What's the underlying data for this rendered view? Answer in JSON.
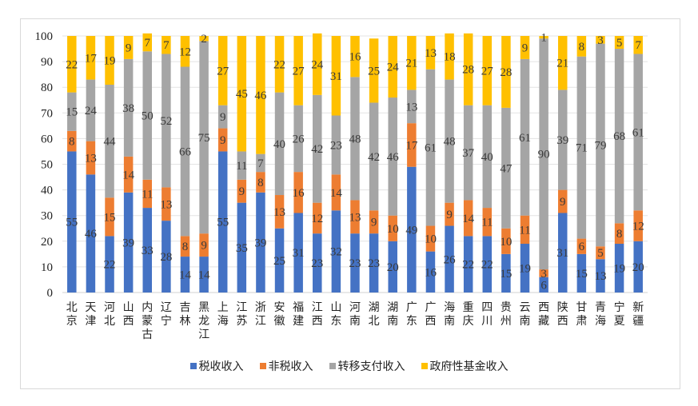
{
  "chart_data": {
    "type": "bar",
    "stacked": true,
    "title": "",
    "xlabel": "",
    "ylabel": "",
    "ylim": [
      0,
      100
    ],
    "yticks": [
      0,
      10,
      20,
      30,
      40,
      50,
      60,
      70,
      80,
      90,
      100
    ],
    "grid": true,
    "legend_position": "bottom",
    "categories": [
      "北京",
      "天津",
      "河北",
      "山西",
      "内蒙古",
      "辽宁",
      "吉林",
      "黑龙江",
      "上海",
      "江苏",
      "浙江",
      "安徽",
      "福建",
      "江西",
      "山东",
      "河南",
      "湖北",
      "湖南",
      "广东",
      "广西",
      "海南",
      "重庆",
      "四川",
      "贵州",
      "云南",
      "西藏",
      "陕西",
      "甘肃",
      "青海",
      "宁夏",
      "新疆"
    ],
    "series": [
      {
        "name": "税收收入",
        "color": "#4472c4",
        "values": [
          55,
          46,
          22,
          39,
          33,
          28,
          14,
          14,
          55,
          35,
          39,
          25,
          31,
          23,
          32,
          23,
          23,
          20,
          49,
          16,
          26,
          22,
          22,
          15,
          19,
          6,
          31,
          15,
          13,
          19,
          20
        ]
      },
      {
        "name": "非税收入",
        "color": "#ed7d31",
        "values": [
          8,
          13,
          15,
          14,
          11,
          13,
          8,
          9,
          9,
          9,
          8,
          13,
          16,
          12,
          14,
          13,
          9,
          10,
          17,
          10,
          9,
          14,
          11,
          10,
          11,
          3,
          9,
          6,
          5,
          8,
          12
        ]
      },
      {
        "name": "转移支付收入",
        "color": "#a5a5a5",
        "values": [
          15,
          24,
          44,
          38,
          50,
          52,
          66,
          75,
          9,
          11,
          7,
          40,
          26,
          42,
          23,
          48,
          42,
          46,
          13,
          61,
          48,
          37,
          40,
          47,
          61,
          90,
          39,
          71,
          79,
          68,
          61
        ]
      },
      {
        "name": "政府性基金收入",
        "color": "#ffc000",
        "values": [
          22,
          17,
          19,
          9,
          7,
          7,
          12,
          2,
          27,
          45,
          46,
          22,
          27,
          24,
          31,
          16,
          25,
          24,
          21,
          13,
          18,
          28,
          27,
          28,
          9,
          1,
          21,
          8,
          3,
          5,
          7
        ]
      }
    ]
  }
}
